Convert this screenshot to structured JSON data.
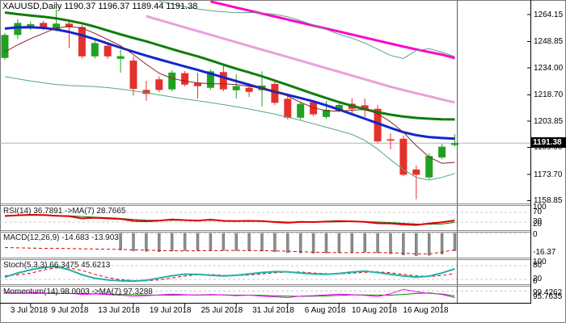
{
  "title": "XAUUSD,Daily  1190.37 1196.37 1189.44 1191.38",
  "price_axis": {
    "labels": [
      1264.15,
      1248.85,
      1234.0,
      1218.7,
      1203.85,
      1189.0,
      1173.7,
      1158.85
    ],
    "current": "1191.38"
  },
  "date_axis": {
    "labels": [
      "3 Jul 2018",
      "9 Jul 2018",
      "13 Jul 2018",
      "19 Jul 2018",
      "25 Jul 2018",
      "31 Jul 2018",
      "6 Aug 2018",
      "10 Aug 2018",
      "16 Aug 2018"
    ],
    "tick_indices": [
      2,
      6,
      10,
      14,
      18,
      22,
      26,
      30,
      34
    ]
  },
  "panels": {
    "rsi": {
      "label": "RSI(14) 36.7891  ->MA(7) 28.7665",
      "axis_labels": [
        "100",
        "70",
        "30",
        "20"
      ],
      "levels": [
        70,
        30
      ]
    },
    "macd": {
      "label": "MACD(12,26,9) -14.683 -13.903",
      "axis_labels": [
        "0",
        "-16.37"
      ],
      "levels": [
        0
      ]
    },
    "stoch": {
      "label": "Stoch(5,3,3) 66.3475 45.6213",
      "axis_labels": [
        "100",
        "80",
        "20",
        "0"
      ],
      "levels": [
        80,
        20
      ]
    },
    "momentum": {
      "label": "Momentum(14) 98.0003  ->MA(7) 97.3288",
      "axis_labels": [
        "99.4262",
        "95.7635"
      ],
      "levels": [
        100
      ]
    }
  },
  "colors": {
    "candle_up": "#21a121",
    "candle_down": "#e5312b",
    "ma_magenta": "#ff00cc",
    "ma_plum": "#eba0dc",
    "ma_slow_green": "#0f7d0f",
    "ma_mid_blue": "#1226cc",
    "ma_fast_maroon": "#8b2020",
    "envelope": "#57a77f",
    "current_price_line": "#b4b4b4",
    "level_dash": "#c8c8c8",
    "rsi_line": "#e00000",
    "rsi_ma": "#0c7a0c",
    "macd_bar": "#8c8c8c",
    "macd_signal": "#e00000",
    "stoch_k": "#20b2aa",
    "stoch_d": "#e00000",
    "momentum_line": "#ff00ff",
    "momentum_ma": "#0c7a0c",
    "axis_text": "#000000",
    "box_bg": "#000000",
    "box_text": "#ffffff"
  },
  "chart_data": {
    "type": "candlestick",
    "symbol": "XAUUSD",
    "timeframe": "Daily",
    "ohlc": {
      "open": [
        1239.6,
        1252.6,
        1256.4,
        1259.4,
        1255.9,
        1259.0,
        1257.1,
        1240.5,
        1246.5,
        1239.1,
        1238.1,
        1221.5,
        1227.5,
        1221.8,
        1231.0,
        1225.4,
        1222.7,
        1231.6,
        1221.3,
        1222.7,
        1221.4,
        1224.9,
        1216.5,
        1205.8,
        1214.5,
        1206.2,
        1209.7,
        1213.7,
        1212.8,
        1210.8,
        1193.6,
        1193.9,
        1176.5,
        1172.0,
        1183.3,
        1190.37
      ],
      "high": [
        1253.7,
        1261.7,
        1260.2,
        1260.6,
        1266.9,
        1260.2,
        1258.3,
        1249.6,
        1248.3,
        1244.2,
        1240.4,
        1226.7,
        1229.1,
        1232.7,
        1232.2,
        1231.3,
        1233.2,
        1236.2,
        1230.4,
        1225.4,
        1232.0,
        1226.7,
        1218.6,
        1214.9,
        1215.7,
        1215.3,
        1214.4,
        1216.9,
        1216.6,
        1213.0,
        1197.0,
        1195.7,
        1178.7,
        1185.6,
        1191.0,
        1196.37
      ],
      "low": [
        1238.5,
        1250.3,
        1255.3,
        1255.3,
        1254.6,
        1245.1,
        1239.3,
        1239.3,
        1239.0,
        1231.3,
        1218.3,
        1215.3,
        1220.3,
        1220.8,
        1223.5,
        1216.6,
        1221.7,
        1220.8,
        1216.6,
        1217.5,
        1212.2,
        1213.0,
        1204.8,
        1204.8,
        1206.6,
        1205.2,
        1208.9,
        1206.9,
        1206.1,
        1191.5,
        1187.9,
        1172.8,
        1159.7,
        1171.0,
        1182.4,
        1189.44
      ],
      "close": [
        1252.6,
        1259.4,
        1258.7,
        1256.4,
        1259.0,
        1256.9,
        1240.5,
        1248.0,
        1240.5,
        1240.6,
        1222.1,
        1219.2,
        1221.5,
        1231.3,
        1224.5,
        1223.6,
        1232.0,
        1221.8,
        1223.7,
        1220.4,
        1224.0,
        1214.2,
        1205.8,
        1213.6,
        1207.7,
        1210.3,
        1213.0,
        1210.8,
        1210.0,
        1192.4,
        1192.8,
        1173.5,
        1173.5,
        1184.1,
        1189.4,
        1191.38
      ]
    },
    "current_price": 1191.38,
    "overlays": [
      {
        "name": "ma-magenta",
        "color_key": "ma_magenta",
        "width": 3,
        "values": [
          null,
          null,
          null,
          null,
          null,
          null,
          null,
          null,
          null,
          null,
          null,
          null,
          null,
          null,
          null,
          null,
          1271.5,
          1269.8,
          1268.1,
          1266.4,
          1264.7,
          1263.0,
          1261.3,
          1259.6,
          1257.9,
          1256.2,
          1254.5,
          1252.8,
          1251.1,
          1249.4,
          1247.7,
          1246.0,
          1244.4,
          1242.9,
          1241.5,
          1239.5
        ]
      },
      {
        "name": "ma-plum",
        "color_key": "ma_plum",
        "width": 3,
        "values": [
          null,
          null,
          null,
          null,
          null,
          null,
          null,
          null,
          null,
          null,
          null,
          1263.2,
          1261.1,
          1259.0,
          1256.9,
          1254.8,
          1252.7,
          1250.6,
          1248.5,
          1246.4,
          1244.3,
          1242.2,
          1240.1,
          1238.0,
          1235.9,
          1233.8,
          1231.7,
          1229.6,
          1227.5,
          1225.4,
          1223.3,
          1221.4,
          1219.6,
          1217.9,
          1216.1,
          1214.4
        ]
      },
      {
        "name": "ma-slow-green",
        "color_key": "ma_slow_green",
        "width": 3,
        "values": [
          1265.3,
          1264.4,
          1263.6,
          1262.9,
          1262.0,
          1260.7,
          1259.2,
          1257.3,
          1255.1,
          1252.9,
          1250.9,
          1249.0,
          1246.8,
          1244.6,
          1242.5,
          1240.5,
          1238.2,
          1235.8,
          1233.5,
          1231.4,
          1229.2,
          1226.8,
          1224.3,
          1221.8,
          1219.3,
          1216.9,
          1214.6,
          1212.5,
          1210.6,
          1208.9,
          1207.5,
          1206.4,
          1205.7,
          1205.2,
          1204.9,
          1204.8
        ]
      },
      {
        "name": "ma-mid-blue",
        "color_key": "ma_mid_blue",
        "width": 3,
        "values": [
          1256.2,
          1256.9,
          1257.0,
          1256.6,
          1255.7,
          1254.3,
          1252.4,
          1250.2,
          1247.8,
          1245.4,
          1243.1,
          1240.9,
          1238.8,
          1236.8,
          1234.8,
          1232.8,
          1230.7,
          1228.6,
          1226.5,
          1224.4,
          1222.4,
          1220.5,
          1218.7,
          1216.9,
          1215.0,
          1212.8,
          1210.4,
          1207.8,
          1205.2,
          1202.6,
          1200.0,
          1197.6,
          1195.9,
          1194.8,
          1194.3,
          1193.9
        ]
      },
      {
        "name": "ma-fast-maroon",
        "color_key": "ma_fast_maroon",
        "width": 1,
        "values": [
          1243.0,
          1247.0,
          1250.5,
          1253.5,
          1256.5,
          1257.5,
          1256.5,
          1253.5,
          1250.0,
          1246.5,
          1241.5,
          1236.0,
          1231.0,
          1228.0,
          1226.5,
          1225.5,
          1225.0,
          1225.0,
          1224.5,
          1223.5,
          1222.5,
          1221.0,
          1218.0,
          1214.5,
          1211.5,
          1209.7,
          1209.5,
          1210.0,
          1210.5,
          1208.0,
          1203.5,
          1197.5,
          1190.0,
          1183.5,
          1180.0,
          1180.5
        ]
      },
      {
        "name": "envelope-upper",
        "color_key": "envelope",
        "width": 1,
        "values": [
          null,
          null,
          null,
          null,
          null,
          null,
          null,
          null,
          null,
          null,
          null,
          null,
          1271.5,
          1270.3,
          1268.5,
          1267.3,
          1266.3,
          1265.7,
          1265.2,
          1265.3,
          1265.0,
          1264.3,
          1262.9,
          1260.7,
          1258.2,
          1255.7,
          1252.9,
          1250.8,
          1248.0,
          1244.6,
          1241.0,
          1239.3,
          1243.8,
          1244.8,
          1242.9,
          1240.3
        ]
      },
      {
        "name": "envelope-lower",
        "color_key": "envelope",
        "width": 1,
        "values": [
          1229.0,
          1227.8,
          1226.6,
          1225.5,
          1224.6,
          1224.0,
          1223.7,
          1223.4,
          1222.8,
          1222.0,
          1221.0,
          1219.9,
          1218.7,
          1217.5,
          1216.4,
          1215.4,
          1214.3,
          1213.2,
          1212.0,
          1210.7,
          1209.3,
          1207.8,
          1206.1,
          1204.3,
          1202.4,
          1200.4,
          1198.4,
          1196.3,
          1193.0,
          1188.0,
          1182.0,
          1176.5,
          1172.0,
          1170.5,
          1172.0,
          1174.2
        ]
      }
    ],
    "indicators": {
      "rsi": [
        55,
        58,
        60,
        59,
        56,
        54,
        45,
        48,
        45,
        43,
        35,
        33,
        36,
        41,
        38,
        36,
        40,
        35,
        34,
        35,
        34,
        30,
        27,
        31,
        30,
        32,
        34,
        33,
        31,
        25,
        24,
        20,
        18,
        24,
        29,
        36.79
      ],
      "rsi_ma": [
        57,
        57,
        58,
        58,
        57,
        56,
        53,
        50,
        48,
        45,
        41,
        38,
        37,
        37,
        38,
        37,
        37,
        36,
        35,
        34,
        33,
        32,
        30,
        30,
        30,
        30,
        31,
        32,
        32,
        30,
        28,
        25,
        22,
        21,
        22,
        28.77
      ],
      "macd_hist": [
        null,
        null,
        null,
        null,
        null,
        null,
        null,
        null,
        null,
        -14.0,
        -14.8,
        -15.2,
        -15.5,
        -15.0,
        -14.6,
        -14.4,
        -14.2,
        -14.5,
        -14.6,
        -14.7,
        -15.0,
        -15.6,
        -16.3,
        -16.6,
        -16.8,
        -16.6,
        -16.3,
        -16.0,
        -15.9,
        -16.5,
        -17.2,
        -18.3,
        -19.0,
        -18.6,
        -17.6,
        -14.683
      ],
      "macd_signal": [
        -12.0,
        -12.2,
        -12.4,
        -12.6,
        -12.7,
        -12.8,
        -13.0,
        -13.2,
        -13.4,
        -13.6,
        -13.9,
        -14.2,
        -14.5,
        -14.7,
        -14.8,
        -14.7,
        -14.6,
        -14.5,
        -14.4,
        -14.5,
        -14.6,
        -14.8,
        -15.1,
        -15.5,
        -15.9,
        -16.2,
        -16.3,
        -16.3,
        -16.2,
        -16.2,
        -16.4,
        -16.8,
        -17.3,
        -17.3,
        -15.8,
        -13.903
      ],
      "stoch_k": [
        30,
        48,
        62,
        72,
        76,
        62,
        40,
        25,
        18,
        14,
        12,
        16,
        26,
        36,
        43,
        42,
        38,
        35,
        38,
        44,
        50,
        54,
        53,
        48,
        44,
        42,
        46,
        52,
        56,
        50,
        42,
        35,
        30,
        34,
        48,
        66.35
      ],
      "stoch_d": [
        36,
        40,
        47,
        61,
        70,
        70,
        59,
        42,
        28,
        19,
        15,
        14,
        18,
        26,
        35,
        40,
        41,
        38,
        37,
        39,
        44,
        49,
        52,
        52,
        48,
        45,
        44,
        47,
        51,
        53,
        49,
        42,
        36,
        33,
        37,
        45.62
      ],
      "momentum": [
        99.3,
        99.1,
        99.4,
        99.2,
        98.9,
        99.1,
        98.6,
        98.8,
        98.5,
        98.3,
        97.9,
        98.1,
        98.4,
        98.7,
        98.5,
        98.3,
        98.6,
        98.4,
        98.1,
        98.3,
        97.9,
        97.6,
        97.3,
        97.9,
        98.1,
        98.4,
        98.7,
        98.5,
        98.2,
        97.7,
        98.9,
        100.7,
        99.7,
        99.0,
        98.8,
        98.0
      ],
      "momentum_ma": [
        99.2,
        99.2,
        99.2,
        99.1,
        99.1,
        99.0,
        98.9,
        98.9,
        98.8,
        98.6,
        98.5,
        98.4,
        98.3,
        98.3,
        98.4,
        98.4,
        98.4,
        98.4,
        98.3,
        98.3,
        98.2,
        98.0,
        97.9,
        97.8,
        97.9,
        98.0,
        98.2,
        98.4,
        98.4,
        98.3,
        98.3,
        98.6,
        99.0,
        99.2,
        98.6,
        97.33
      ]
    }
  }
}
